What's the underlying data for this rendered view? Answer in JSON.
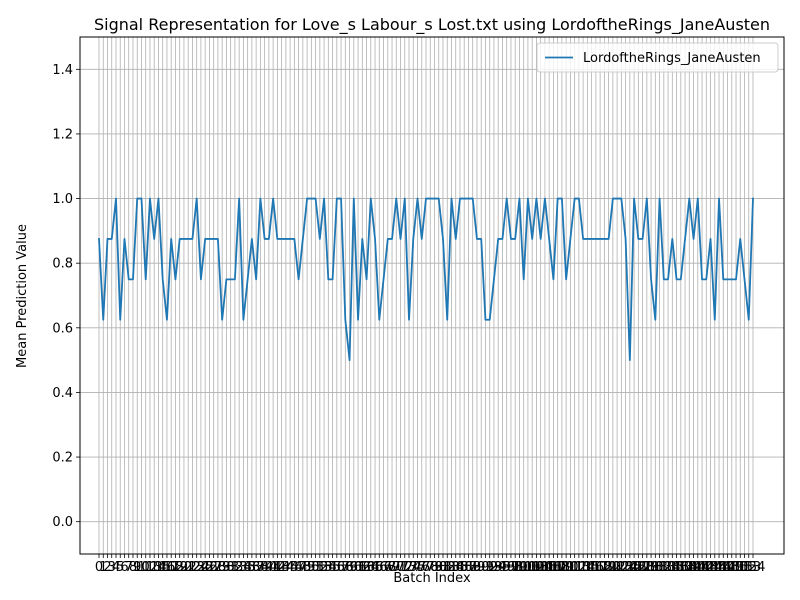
{
  "chart_data": {
    "type": "line",
    "title": "Signal Representation for Love_s Labour_s Lost.txt using LordoftheRings_JaneAusten",
    "xlabel": "Batch Index",
    "ylabel": "Mean Prediction Value",
    "ylim": [
      -0.1,
      1.5
    ],
    "yticks": [
      "0.0",
      "0.2",
      "0.4",
      "0.6",
      "0.8",
      "1.0",
      "1.2",
      "1.4"
    ],
    "grid": true,
    "legend_position": "top-right",
    "series": [
      {
        "name": "LordoftheRings_JaneAusten",
        "color": "#1f77b4",
        "values": [
          0.875,
          0.625,
          0.875,
          0.875,
          1.0,
          0.625,
          0.875,
          0.75,
          0.75,
          1.0,
          1.0,
          0.75,
          1.0,
          0.875,
          1.0,
          0.75,
          0.625,
          0.875,
          0.75,
          0.875,
          0.875,
          0.875,
          0.875,
          1.0,
          0.75,
          0.875,
          0.875,
          0.875,
          0.875,
          0.625,
          0.75,
          0.75,
          0.75,
          1.0,
          0.625,
          0.75,
          0.875,
          0.75,
          1.0,
          0.875,
          0.875,
          1.0,
          0.875,
          0.875,
          0.875,
          0.875,
          0.875,
          0.75,
          0.875,
          1.0,
          1.0,
          1.0,
          0.875,
          1.0,
          0.75,
          0.75,
          1.0,
          1.0,
          0.625,
          0.5,
          1.0,
          0.625,
          0.875,
          0.75,
          1.0,
          0.875,
          0.625,
          0.75,
          0.875,
          0.875,
          1.0,
          0.875,
          1.0,
          0.625,
          0.875,
          1.0,
          0.875,
          1.0,
          1.0,
          1.0,
          1.0,
          0.875,
          0.625,
          1.0,
          0.875,
          1.0,
          1.0,
          1.0,
          1.0,
          0.875,
          0.875,
          0.625,
          0.625,
          0.75,
          0.875,
          0.875,
          1.0,
          0.875,
          0.875,
          1.0,
          0.75,
          1.0,
          0.875,
          1.0,
          0.875,
          1.0,
          0.875,
          0.75,
          1.0,
          1.0,
          0.75,
          0.875,
          1.0,
          1.0,
          0.875,
          0.875,
          0.875,
          0.875,
          0.875,
          0.875,
          0.875,
          1.0,
          1.0,
          1.0,
          0.875,
          0.5,
          1.0,
          0.875,
          0.875,
          1.0,
          0.75,
          0.625,
          1.0,
          0.75,
          0.75,
          0.875,
          0.75,
          0.75,
          0.875,
          1.0,
          0.875,
          1.0,
          0.75,
          0.75,
          0.875,
          0.625,
          1.0,
          0.75,
          0.75,
          0.75,
          0.75,
          0.875,
          0.75,
          0.625,
          1.0
        ]
      }
    ]
  }
}
